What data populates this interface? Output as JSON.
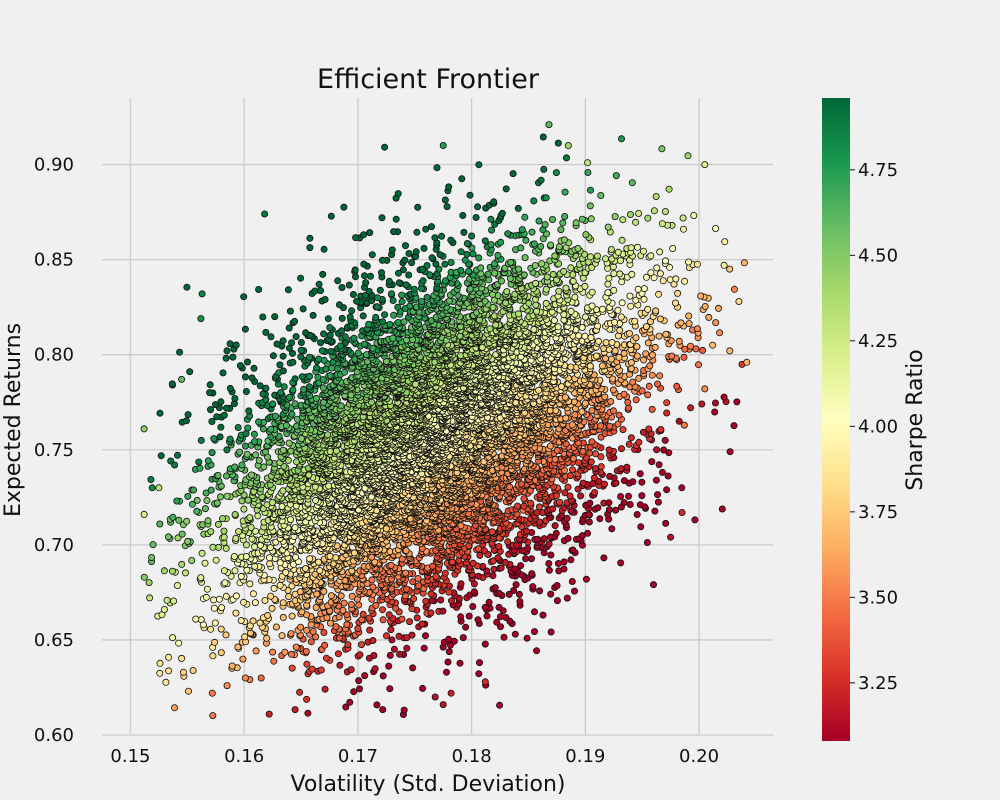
{
  "chart_data": {
    "type": "scatter",
    "title": "Efficient Frontier",
    "xlabel": "Volatility (Std. Deviation)",
    "ylabel": "Expected Returns",
    "xlim": [
      0.1475,
      0.2065
    ],
    "ylim": [
      0.6,
      0.935
    ],
    "x_ticks": [
      "0.15",
      "0.16",
      "0.17",
      "0.18",
      "0.19",
      "0.20"
    ],
    "y_ticks": [
      "0.60",
      "0.65",
      "0.70",
      "0.75",
      "0.80",
      "0.85",
      "0.90"
    ],
    "grid": true,
    "colorbar": {
      "label": "Sharpe Ratio",
      "colormap": "RdYlGn",
      "range": [
        3.08,
        4.96
      ],
      "ticks": [
        "3.25",
        "3.50",
        "3.75",
        "4.00",
        "4.25",
        "4.50",
        "4.75"
      ],
      "colors": [
        "#a50026",
        "#d73027",
        "#f46d43",
        "#fdae61",
        "#fee08b",
        "#ffffbf",
        "#d9ef8b",
        "#a6d96a",
        "#66bd63",
        "#1a9850",
        "#006837"
      ]
    },
    "distribution": {
      "mean_volatility": 0.1765,
      "sd_volatility": 0.0088,
      "mean_return": 0.755,
      "sd_return": 0.048,
      "correlation": 0.42,
      "point_count": 9000
    },
    "points": [
      [
        0.1618,
        0.874,
        4.9
      ],
      [
        0.1868,
        0.921,
        4.6
      ],
      [
        0.1775,
        0.91,
        4.75
      ],
      [
        0.2005,
        0.9,
        4.2
      ],
      [
        0.1902,
        0.901,
        4.3
      ],
      [
        0.1885,
        0.91,
        4.4
      ],
      [
        0.1563,
        0.832,
        4.85
      ],
      [
        0.1562,
        0.819,
        4.8
      ],
      [
        0.1545,
        0.787,
        4.6
      ],
      [
        0.1512,
        0.761,
        4.45
      ],
      [
        0.1512,
        0.716,
        4.2
      ],
      [
        0.1525,
        0.73,
        4.3
      ],
      [
        0.2035,
        0.828,
        3.8
      ],
      [
        0.2042,
        0.796,
        3.65
      ],
      [
        0.2022,
        0.847,
        3.9
      ],
      [
        0.2012,
        0.805,
        3.7
      ],
      [
        0.2027,
        0.802,
        3.7
      ],
      [
        0.2005,
        0.782,
        3.55
      ],
      [
        0.1987,
        0.763,
        3.5
      ],
      [
        0.1985,
        0.717,
        3.25
      ],
      [
        0.1975,
        0.704,
        3.15
      ],
      [
        0.1622,
        0.611,
        3.2
      ],
      [
        0.1775,
        0.616,
        3.15
      ],
      [
        0.1768,
        0.62,
        3.15
      ],
      [
        0.1782,
        0.622,
        3.2
      ],
      [
        0.1812,
        0.628,
        3.25
      ],
      [
        0.1572,
        0.622,
        3.5
      ],
      [
        0.1585,
        0.626,
        3.55
      ],
      [
        0.1615,
        0.63,
        3.45
      ]
    ]
  }
}
